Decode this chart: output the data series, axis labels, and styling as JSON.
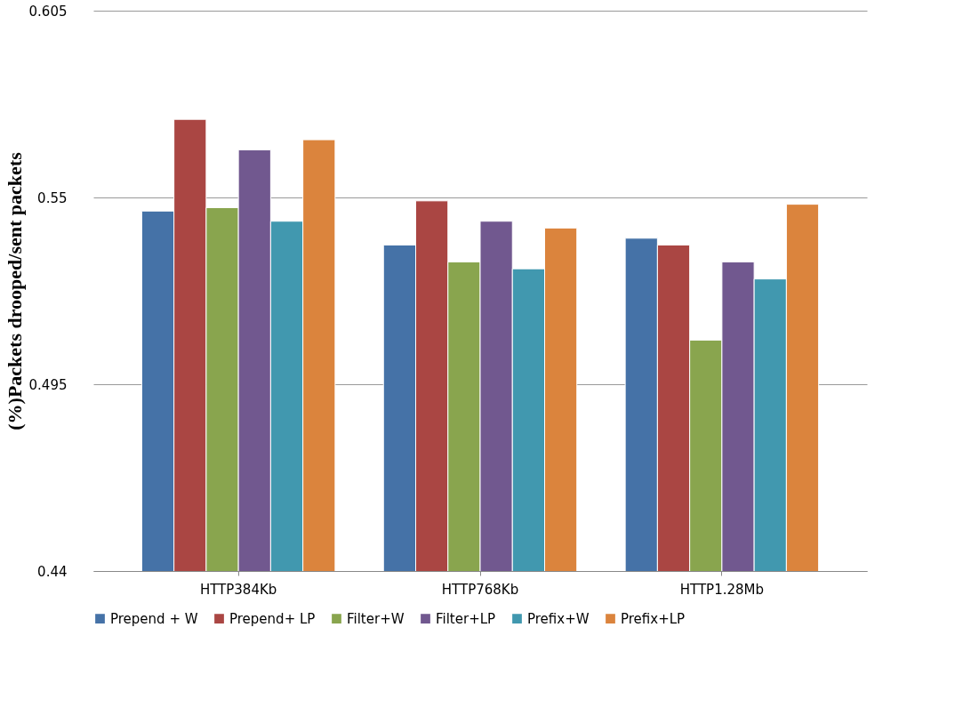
{
  "chart_data": {
    "type": "bar",
    "ylabel": "(%)Packets drooped/sent packets",
    "categories": [
      "HTTP384Kb",
      "HTTP768Kb",
      "HTTP1.28Mb"
    ],
    "series": [
      {
        "name": "Prepend + W",
        "color": "#4572a7",
        "values": [
          0.546,
          0.536,
          0.538
        ]
      },
      {
        "name": "Prepend+ LP",
        "color": "#aa4643",
        "values": [
          0.573,
          0.549,
          0.536
        ]
      },
      {
        "name": "Filter+W",
        "color": "#89a54e",
        "values": [
          0.547,
          0.531,
          0.508
        ]
      },
      {
        "name": "Filter+LP",
        "color": "#71588f",
        "values": [
          0.564,
          0.543,
          0.531
        ]
      },
      {
        "name": "Prefix+W",
        "color": "#4198af",
        "values": [
          0.543,
          0.529,
          0.526
        ]
      },
      {
        "name": "Prefix+LP",
        "color": "#db843d",
        "values": [
          0.567,
          0.541,
          0.548
        ]
      }
    ],
    "ylim": [
      0.44,
      0.605
    ],
    "yticks": [
      0.44,
      0.495,
      0.55,
      0.605
    ],
    "grid": "y",
    "legend": "bottom"
  }
}
